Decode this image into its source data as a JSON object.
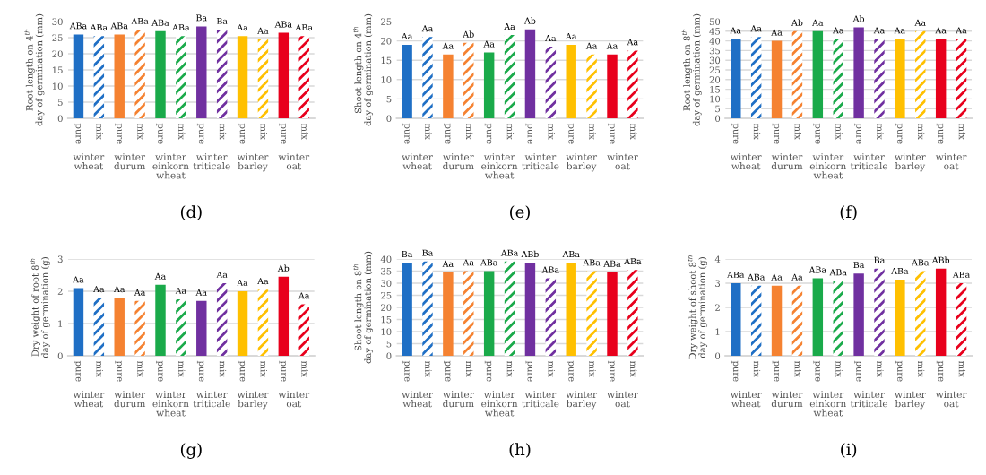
{
  "chart_data": [
    {
      "type": "bar",
      "title": "(d)",
      "ylabel": "Root length on 4$^{th}$ day of germination (mm)",
      "categories": [
        "pure",
        "mix",
        "pure",
        "mix",
        "pure",
        "mix",
        "pure",
        "mix",
        "pure",
        "mix",
        "pure",
        "mix"
      ],
      "annotations": [
        "winter wheat",
        "winter durum",
        "winter einkorn wheat",
        "winter triticale",
        "winter barley",
        "winter oat"
      ],
      "values": [
        26,
        25.5,
        26,
        27.5,
        27,
        25.5,
        28.5,
        27.5,
        25.5,
        24.5,
        26.5,
        25.5
      ],
      "colors": [
        "#1f6fc5",
        "#1f6fc5",
        "#f58231",
        "#f58231",
        "#1aaa4a",
        "#1aaa4a",
        "#7030a0",
        "#7030a0",
        "#ffc000",
        "#ffc000",
        "#e8001c",
        "#e8001c"
      ],
      "value_labels": [
        "ABa",
        "ABa",
        "ABa",
        "ABa",
        "ABa",
        "ABa",
        "Ba",
        "Ba",
        "Aa",
        "Aa",
        "ABa",
        "ABa"
      ],
      "ylim": [
        0,
        30
      ],
      "yticks": [
        0,
        5,
        10,
        15,
        20,
        25,
        30
      ],
      "grid": "y"
    },
    {
      "type": "bar",
      "title": "(e)",
      "ylabel": "Shoot length on 4$^{th}$ day of germination (mm)",
      "categories": [
        "pure",
        "mix",
        "pure",
        "mix",
        "pure",
        "mix",
        "pure",
        "mix",
        "pure",
        "mix",
        "pure",
        "mix"
      ],
      "annotations": [
        "winter wheat",
        "winter durum",
        "winter einkorn wheat",
        "winter triticale",
        "winter barley",
        "winter oat"
      ],
      "values": [
        19,
        21,
        16.5,
        19.5,
        17,
        21.5,
        23,
        18.5,
        19,
        16.5,
        16.5,
        17.5
      ],
      "colors": [
        "#1f6fc5",
        "#1f6fc5",
        "#f58231",
        "#f58231",
        "#1aaa4a",
        "#1aaa4a",
        "#7030a0",
        "#7030a0",
        "#ffc000",
        "#ffc000",
        "#e8001c",
        "#e8001c"
      ],
      "value_labels": [
        "Aa",
        "Aa",
        "Aa",
        "Ab",
        "Aa",
        "Aa",
        "Ab",
        "Aa",
        "Aa",
        "Aa",
        "Aa",
        "Aa"
      ],
      "ylim": [
        0,
        25
      ],
      "yticks": [
        0,
        5,
        10,
        15,
        20,
        25
      ],
      "grid": "y"
    },
    {
      "type": "bar",
      "title": "(f)",
      "ylabel": "Root length on 8$^{th}$ day of germination (mm)",
      "categories": [
        "pure",
        "mix",
        "pure",
        "mix",
        "pure",
        "mix",
        "pure",
        "mix",
        "pure",
        "mix",
        "pure",
        "mix"
      ],
      "annotations": [
        "winter wheat",
        "winter durum",
        "winter einkorn wheat",
        "winter triticale",
        "winter barley",
        "winter oat"
      ],
      "values": [
        41,
        42,
        40,
        45,
        45,
        41,
        47,
        41,
        41,
        45,
        41,
        41
      ],
      "colors": [
        "#1f6fc5",
        "#1f6fc5",
        "#f58231",
        "#f58231",
        "#1aaa4a",
        "#1aaa4a",
        "#7030a0",
        "#7030a0",
        "#ffc000",
        "#ffc000",
        "#e8001c",
        "#e8001c"
      ],
      "value_labels": [
        "Aa",
        "Aa",
        "Aa",
        "Ab",
        "Aa",
        "Aa",
        "Ab",
        "Aa",
        "Aa",
        "Aa",
        "Aa",
        "Aa"
      ],
      "ylim": [
        0,
        50
      ],
      "yticks": [
        0,
        5,
        10,
        15,
        20,
        25,
        30,
        35,
        40,
        45,
        50
      ],
      "grid": "y"
    },
    {
      "type": "bar",
      "title": "(g)",
      "ylabel": "Dry weight of root 8$^{th}$ day of germination (g)",
      "categories": [
        "pure",
        "mix",
        "pure",
        "mix",
        "pure",
        "mix",
        "pure",
        "mix",
        "pure",
        "mix",
        "pure",
        "mix"
      ],
      "annotations": [
        "winter wheat",
        "winter durum",
        "winter einkorn wheat",
        "winter triticale",
        "winter barley",
        "winter oat"
      ],
      "values": [
        2.1,
        1.8,
        1.8,
        1.7,
        2.2,
        1.75,
        1.7,
        2.25,
        2.0,
        2.05,
        2.45,
        1.6
      ],
      "colors": [
        "#1f6fc5",
        "#1f6fc5",
        "#f58231",
        "#f58231",
        "#1aaa4a",
        "#1aaa4a",
        "#7030a0",
        "#7030a0",
        "#ffc000",
        "#ffc000",
        "#e8001c",
        "#e8001c"
      ],
      "value_labels": [
        "Aa",
        "Aa",
        "Aa",
        "Aa",
        "Aa",
        "Aa",
        "Aa",
        "Aa",
        "Aa",
        "Aa",
        "Ab",
        "Aa"
      ],
      "ylim": [
        0,
        3
      ],
      "yticks": [
        0,
        1,
        2,
        3
      ],
      "grid": "y"
    },
    {
      "type": "bar",
      "title": "(h)",
      "ylabel": "Shoot length on 8$^{th}$ day of germination (mm)",
      "categories": [
        "pure",
        "mix",
        "pure",
        "mix",
        "pure",
        "mix",
        "pure",
        "mix",
        "pure",
        "mix",
        "pure",
        "mix"
      ],
      "annotations": [
        "winter wheat",
        "winter durum",
        "winter einkorn wheat",
        "winter triticale",
        "winter barley",
        "winter oat"
      ],
      "values": [
        38.5,
        39,
        34.5,
        35,
        35,
        39,
        38.5,
        32,
        38.5,
        35,
        34.5,
        35.5
      ],
      "colors": [
        "#1f6fc5",
        "#1f6fc5",
        "#f58231",
        "#f58231",
        "#1aaa4a",
        "#1aaa4a",
        "#7030a0",
        "#7030a0",
        "#ffc000",
        "#ffc000",
        "#e8001c",
        "#e8001c"
      ],
      "value_labels": [
        "Ba",
        "Ba",
        "Aa",
        "Aa",
        "ABa",
        "ABa",
        "ABb",
        "ABa",
        "ABa",
        "ABa",
        "ABa",
        "ABa"
      ],
      "ylim": [
        0,
        40
      ],
      "yticks": [
        0,
        5,
        10,
        15,
        20,
        25,
        30,
        35,
        40
      ],
      "grid": "y"
    },
    {
      "type": "bar",
      "title": "(i)",
      "ylabel": "Dry weight of shoot 8$^{th}$ day of germination (g)",
      "categories": [
        "pure",
        "mix",
        "pure",
        "mix",
        "pure",
        "mix",
        "pure",
        "mix",
        "pure",
        "mix",
        "pure",
        "mix"
      ],
      "annotations": [
        "winter wheat",
        "winter durum",
        "winter einkorn wheat",
        "winter triticale",
        "winter barley",
        "winter oat"
      ],
      "values": [
        3.0,
        2.9,
        2.9,
        2.9,
        3.2,
        3.1,
        3.4,
        3.6,
        3.15,
        3.5,
        3.6,
        3.0
      ],
      "colors": [
        "#1f6fc5",
        "#1f6fc5",
        "#f58231",
        "#f58231",
        "#1aaa4a",
        "#1aaa4a",
        "#7030a0",
        "#7030a0",
        "#ffc000",
        "#ffc000",
        "#e8001c",
        "#e8001c"
      ],
      "value_labels": [
        "ABa",
        "ABa",
        "Aa",
        "Aa",
        "ABa",
        "ABa",
        "Ba",
        "Ba",
        "ABa",
        "ABa",
        "ABb",
        "ABa"
      ],
      "ylim": [
        0,
        4
      ],
      "yticks": [
        0,
        1,
        2,
        3,
        4
      ],
      "grid": "y"
    }
  ]
}
